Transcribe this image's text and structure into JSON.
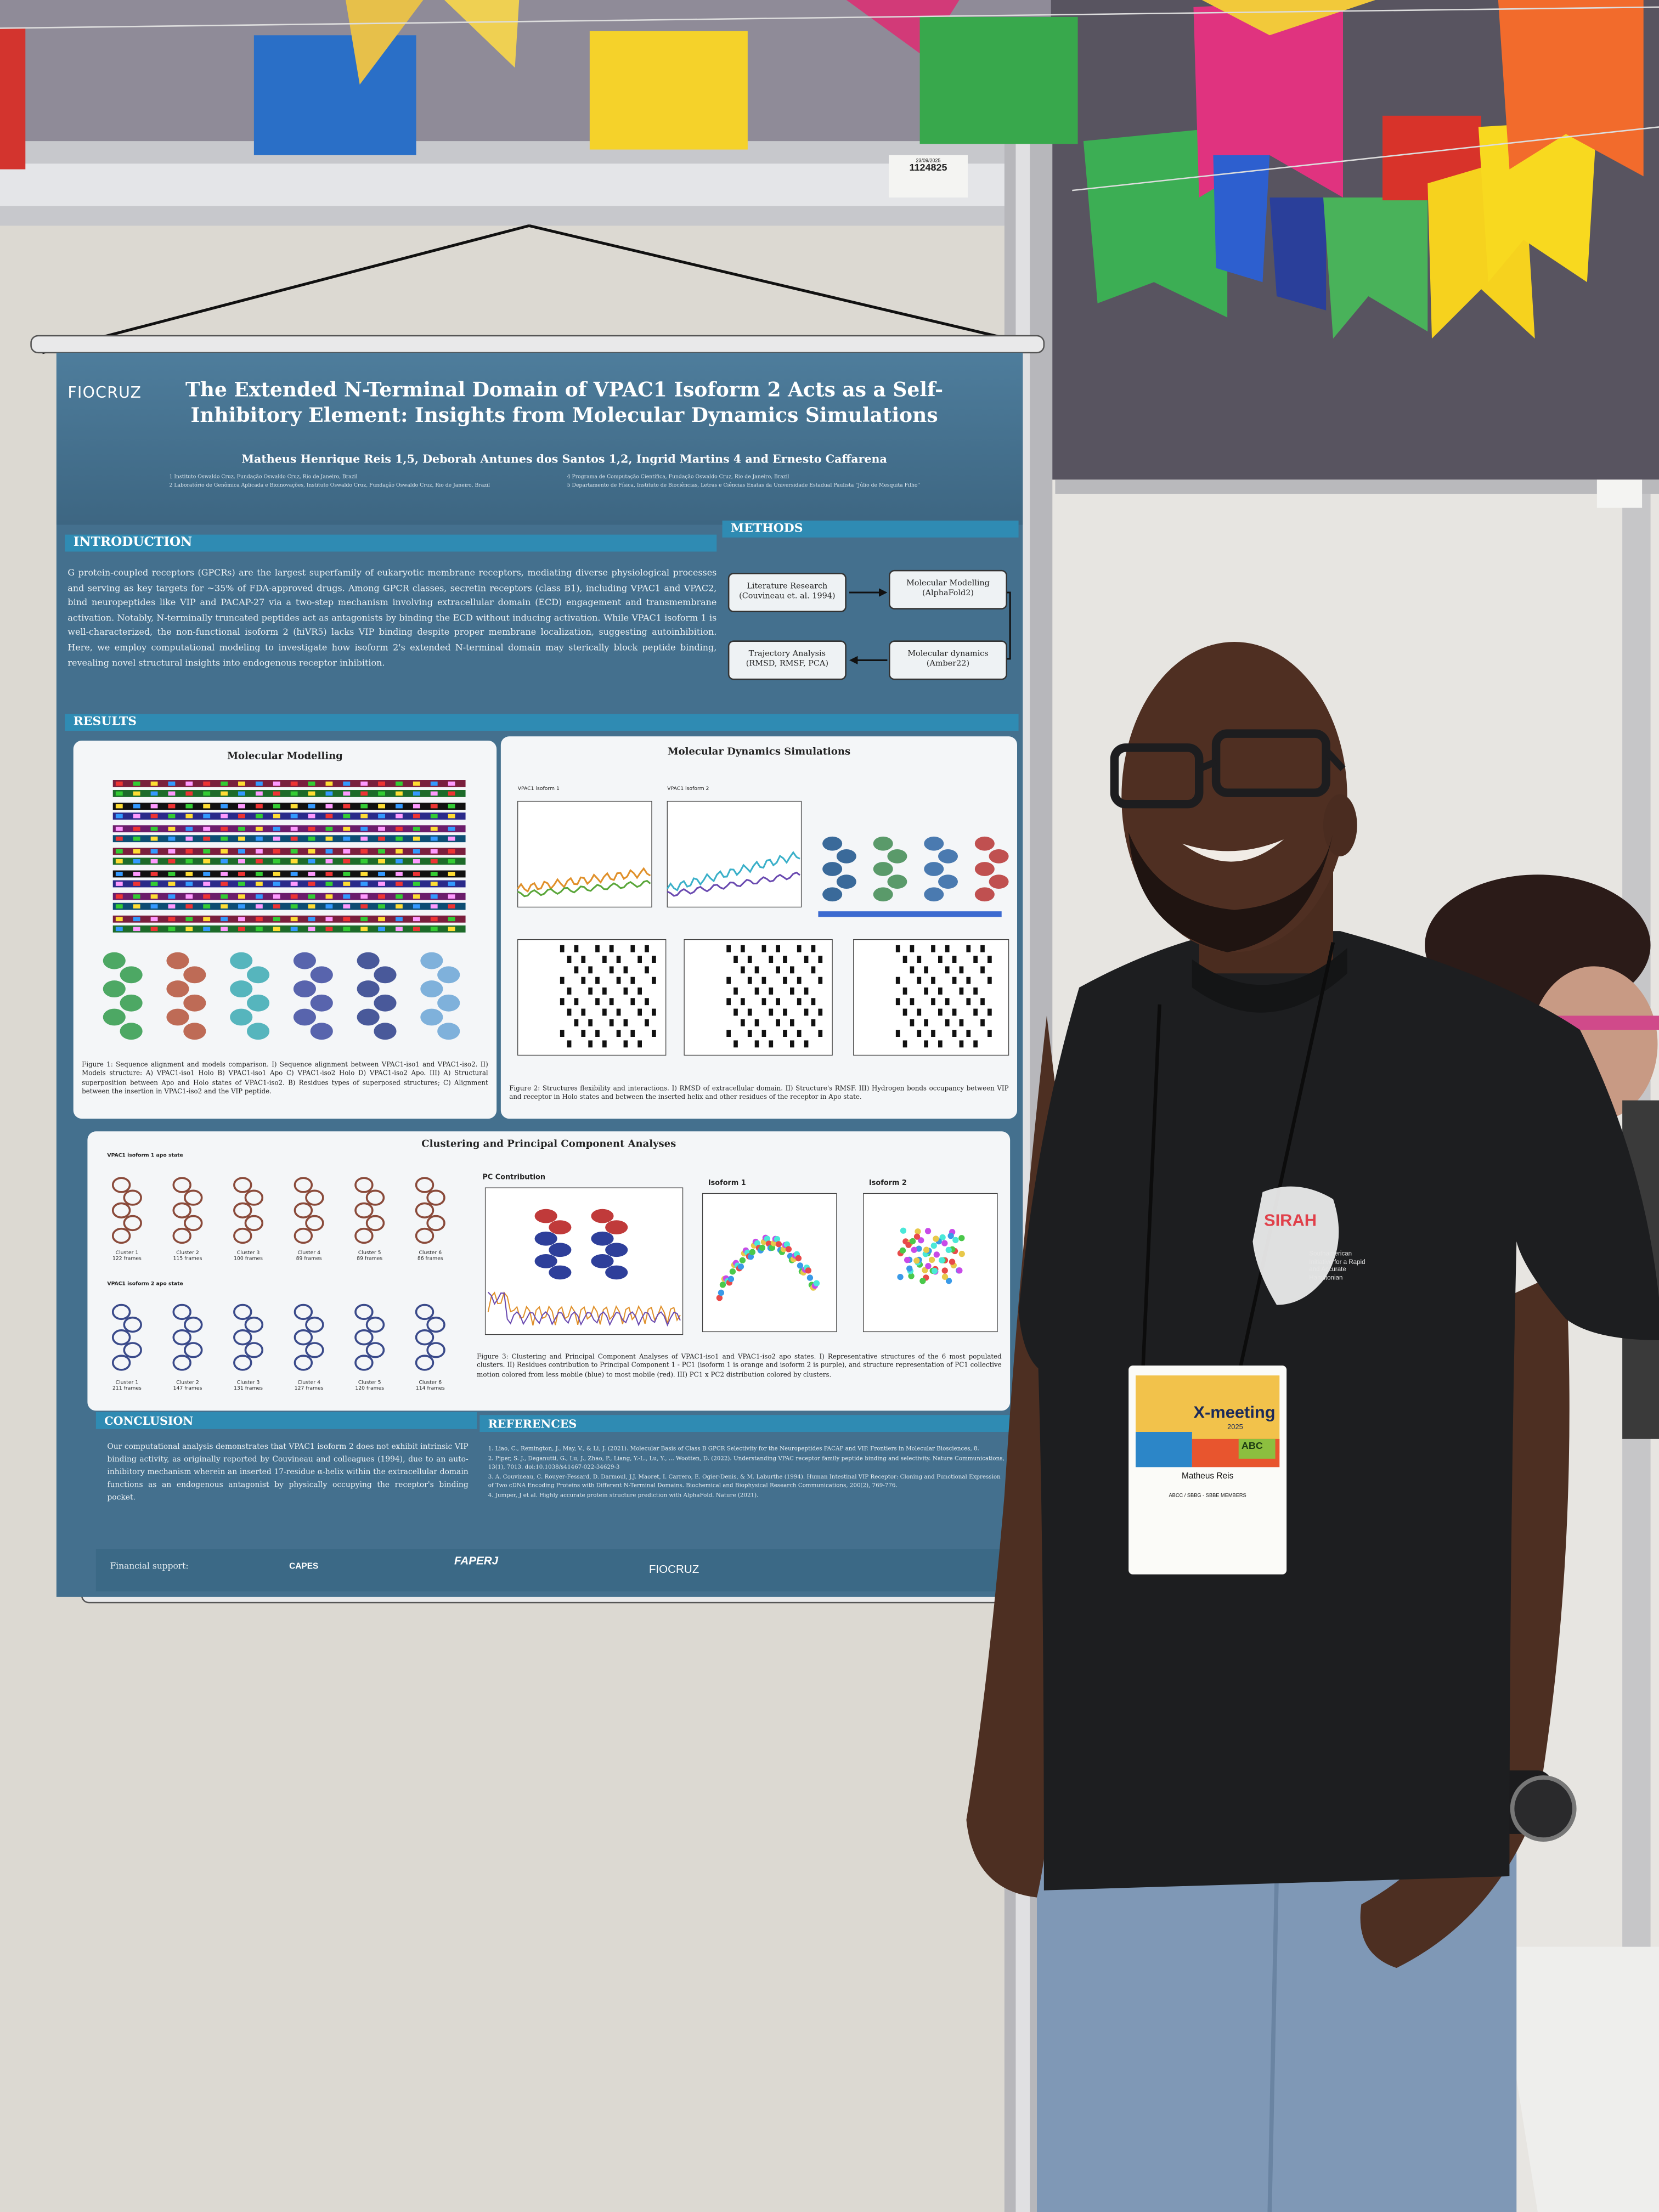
{
  "board": {
    "date": "23/09/2025",
    "number": "1124825"
  },
  "poster": {
    "logo": "FIOCRUZ",
    "title": "The Extended N-Terminal Domain of VPAC1 Isoform 2 Acts as a Self-Inhibitory Element: Insights from Molecular Dynamics Simulations",
    "authors": "Matheus Henrique Reis 1,5, Deborah Antunes dos Santos 1,2, Ingrid Martins 4 and Ernesto Caffarena",
    "affiliations": [
      "1 Instituto Oswaldo Cruz, Fundação Oswaldo Cruz, Rio de Janeiro, Brazil",
      "2 Laboratório de Genômica Aplicada e Bioinovações, Instituto Oswaldo Cruz, Fundação Oswaldo Cruz, Rio de Janeiro, Brazil",
      "4 Programa de Computação Científica, Fundação Oswaldo Cruz, Rio de Janeiro, Brazil",
      "5 Departamento de Física, Instituto de Biociências, Letras e Ciências Exatas da Universidade Estadual Paulista \"Júlio de Mesquita Filho\""
    ],
    "introduction": {
      "heading": "INTRODUCTION",
      "text": "G protein-coupled receptors (GPCRs) are the largest superfamily of eukaryotic membrane receptors, mediating diverse physiological processes and serving as key targets for ~35% of FDA-approved drugs. Among GPCR classes, secretin receptors (class B1), including VPAC1 and VPAC2, bind neuropeptides like VIP and PACAP-27 via a two-step mechanism involving extracellular domain (ECD) engagement and transmembrane activation. Notably, N-terminally truncated peptides act as antagonists by binding the ECD without inducing activation. While VPAC1 isoform 1 is well-characterized, the non-functional isoform 2 (hiVR5) lacks VIP binding despite proper membrane localization, suggesting autoinhibition. Here, we employ computational modeling to investigate how isoform 2's extended N-terminal domain may sterically block peptide binding, revealing novel structural insights into endogenous receptor inhibition."
    },
    "methods": {
      "heading": "METHODS",
      "steps": [
        "Literature Research (Couvineau et. al. 1994)",
        "Molecular Modelling (AlphaFold2)",
        "Molecular dynamics (Amber22)",
        "Trajectory Analysis (RMSD, RMSF, PCA)"
      ]
    },
    "results": {
      "heading": "RESULTS",
      "modelling": {
        "title": "Molecular Modelling",
        "caption": "Figure 1: Sequence alignment and models comparison. I) Sequence alignment between VPAC1-iso1 and VPAC1-iso2. II) Models structure: A) VPAC1-iso1 Holo B) VPAC1-iso1 Apo C) VPAC1-iso2 Holo D) VPAC1-iso2 Apo. III) A) Structural superposition between Apo and Holo states of VPAC1-iso2. B) Residues types of superposed structures; C) Alignment between the insertion in VPAC1-iso2 and the VIP peptide."
      },
      "dynamics": {
        "title": "Molecular Dynamics Simulations",
        "plots": [
          "VPAC1 isoform 1",
          "VPAC1 isoform 2"
        ],
        "caption": "Figure 2: Structures flexibility and interactions. I) RMSD of extracellular domain. II) Structure's RMSF. III) Hydrogen bonds occupancy between VIP and receptor in Holo states and between the inserted helix and other residues of the receptor in Apo state."
      },
      "clustering": {
        "title": "Clustering and Principal Component Analyses",
        "iso1_label": "VPAC1 isoform 1 apo state",
        "iso2_label": "VPAC1 isoform 2 apo state",
        "iso1_clusters": [
          {
            "name": "Cluster 1",
            "frames": "122 frames"
          },
          {
            "name": "Cluster 2",
            "frames": "115 frames"
          },
          {
            "name": "Cluster 3",
            "frames": "100 frames"
          },
          {
            "name": "Cluster 4",
            "frames": "89 frames"
          },
          {
            "name": "Cluster 5",
            "frames": "89 frames"
          },
          {
            "name": "Cluster 6",
            "frames": "86 frames"
          }
        ],
        "iso2_clusters": [
          {
            "name": "Cluster 1",
            "frames": "211 frames"
          },
          {
            "name": "Cluster 2",
            "frames": "147 frames"
          },
          {
            "name": "Cluster 3",
            "frames": "131 frames"
          },
          {
            "name": "Cluster 4",
            "frames": "127 frames"
          },
          {
            "name": "Cluster 5",
            "frames": "120 frames"
          },
          {
            "name": "Cluster 6",
            "frames": "114 frames"
          }
        ],
        "pc_label": "PC Contribution",
        "pca_labels": [
          "Isoform 1",
          "Isoform 2"
        ],
        "caption": "Figure 3: Clustering and Principal Component Analyses of VPAC1-iso1 and VPAC1-iso2 apo states. I) Representative structures of the 6 most populated clusters. II) Residues contribution to Principal Component 1 - PC1 (isoform 1 is orange and isoform 2 is purple), and structure representation of PC1 collective motion colored from less mobile (blue) to most mobile (red). III) PC1 x PC2 distribution colored by clusters."
      }
    },
    "conclusion": {
      "heading": "CONCLUSION",
      "text": "Our computational analysis demonstrates that VPAC1 isoform 2 does not exhibit intrinsic VIP binding activity, as originally reported by Couvineau and colleagues (1994), due to an auto-inhibitory mechanism wherein an inserted 17-residue α-helix within the extracellular domain functions as an endogenous antagonist by physically occupying the receptor's binding pocket."
    },
    "references": {
      "heading": "REFERENCES",
      "items": [
        "1. Liao, C., Remington, J., May, V., & Li, J. (2021). Molecular Basis of Class B GPCR Selectivity for the Neuropeptides PACAP and VIP. Frontiers in Molecular Biosciences, 8.",
        "2. Piper, S. J., Deganutti, G., Lu, J., Zhao, P., Liang, Y.-L., Lu, Y., ... Wootten, D. (2022). Understanding VPAC receptor family peptide binding and selectivity. Nature Communications, 13(1), 7013. doi:10.1038/s41467-022-34629-3",
        "3. A. Couvineau, C. Rouyer-Fessard, D. Darmoul, J.J. Maoret, I. Carrero, E. Ogier-Denis, & M. Laburthe (1994). Human Intestinal VIP Receptor: Cloning and Functional Expression of Two cDNA Encoding Proteins with Different N-Terminal Domains. Biochemical and Biophysical Research Communications, 200(2), 769-776.",
        "4. Jumper, J et al. Highly accurate protein structure prediction with AlphaFold. Nature (2021)."
      ]
    },
    "funding": {
      "label": "Financial support:",
      "sponsors": [
        "CAPES",
        "FAPERJ",
        "FIOCRUZ"
      ]
    }
  },
  "badge": {
    "event": "X-meeting",
    "year": "2025",
    "logo": "ABC",
    "name": "Matheus Reis",
    "role": "ABCC / SBBG - SBBE MEMBERS"
  },
  "shirt": {
    "logo": "SIRAH",
    "tagline": "Southamerican Initiative for a Rapid and Accurate Hamiltonian"
  }
}
